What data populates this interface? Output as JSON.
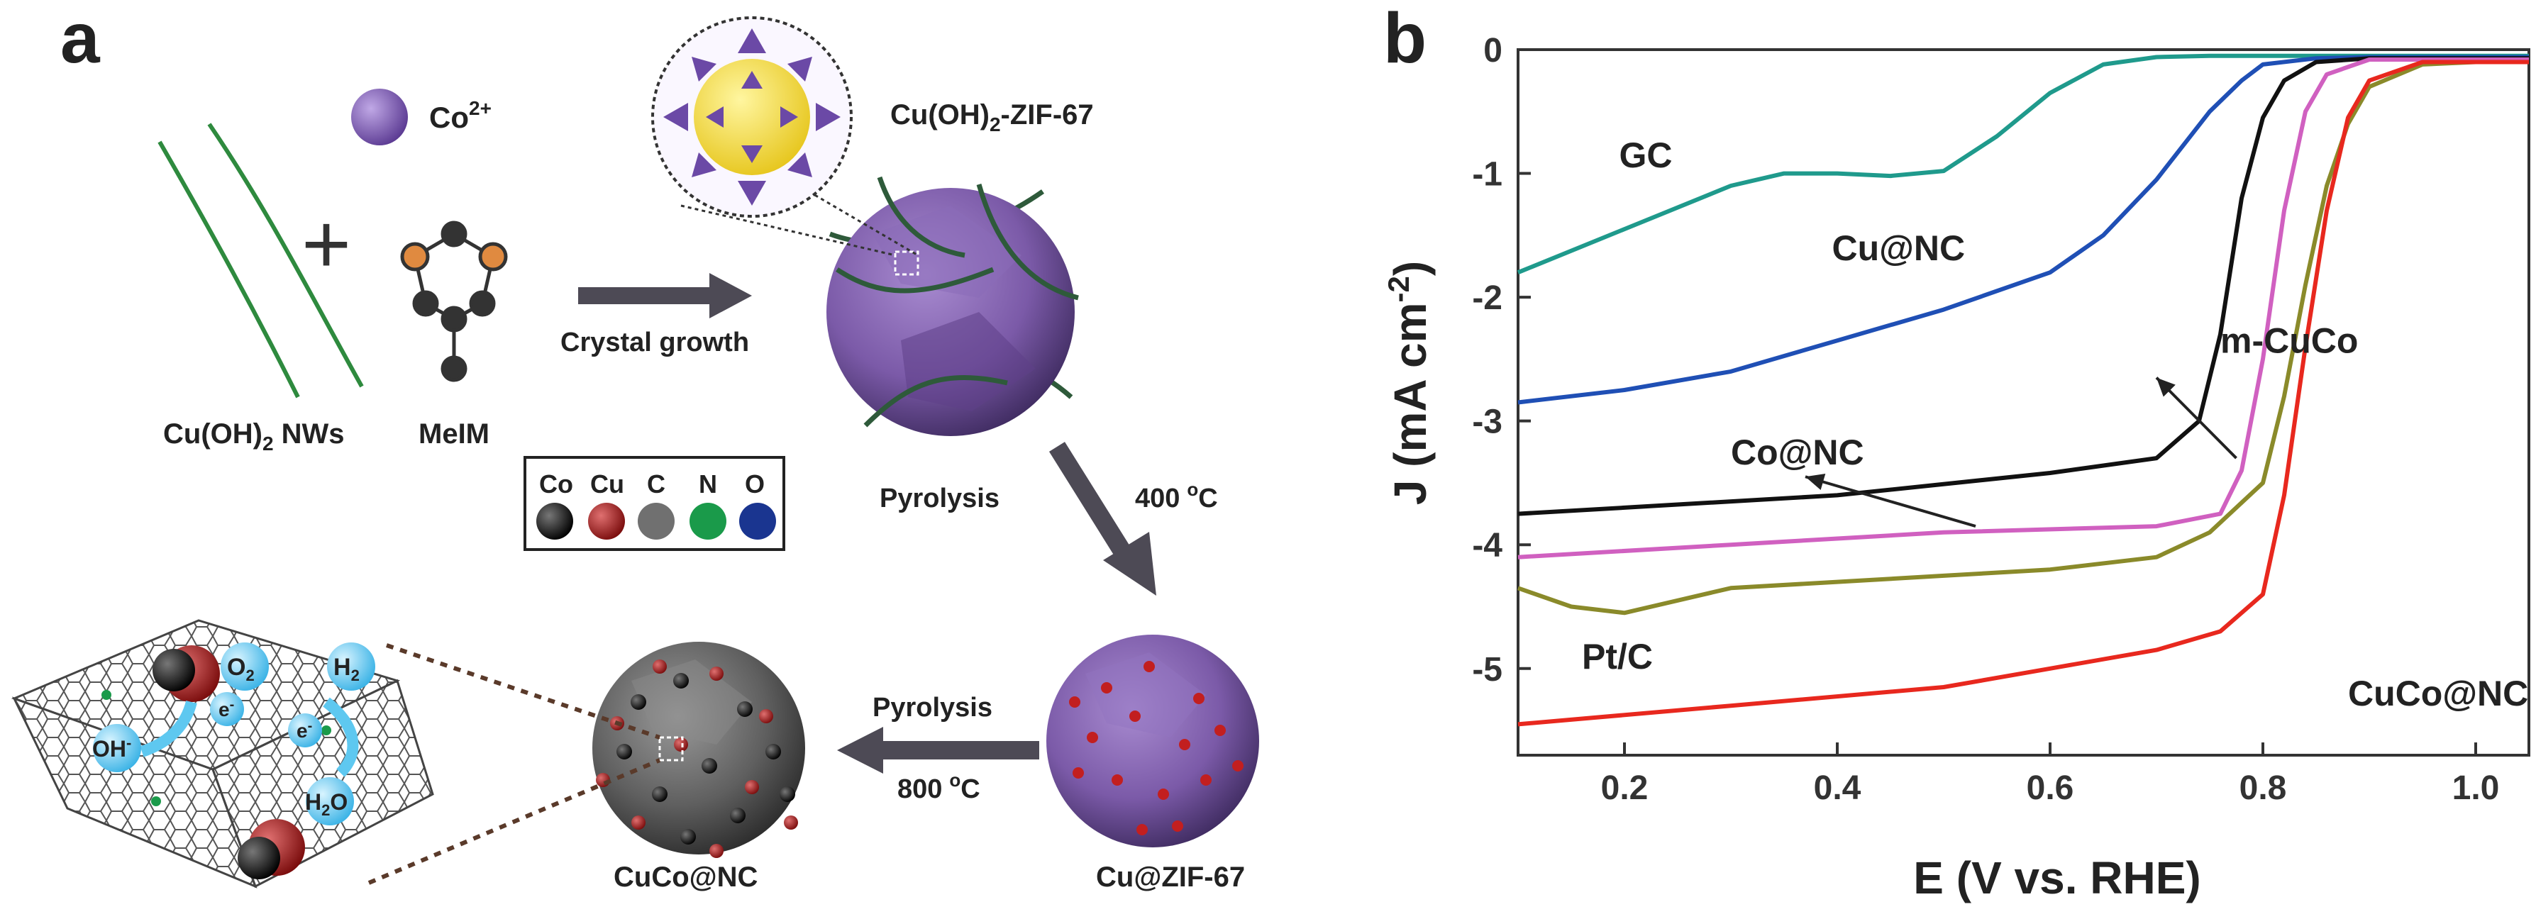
{
  "panel_a": {
    "letter": "a",
    "ion_label": "Co",
    "ion_charge": "2+",
    "plus_sign": "+",
    "wires_label_pre": "Cu(OH)",
    "wires_label_sub": "2",
    "wires_label_post": " NWs",
    "linker_label": "MeIM",
    "step1_label": "Crystal growth",
    "mof1_label_pre": "Cu(OH)",
    "mof1_label_sub": "2",
    "mof1_label_post": "-ZIF-67",
    "step2_label": "Pyrolysis",
    "step2_temp": "400",
    "step2_unit_sup": "o",
    "step2_unit": "C",
    "mof2_label": "Cu@ZIF-67",
    "step3_label": "Pyrolysis",
    "step3_temp": "800",
    "step3_unit_sup": "o",
    "step3_unit": "C",
    "product_label": "CuCo@NC",
    "legend": [
      {
        "label": "Co",
        "color": "#111111"
      },
      {
        "label": "Cu",
        "color": "#b01818"
      },
      {
        "label": "C",
        "color": "#707070"
      },
      {
        "label": "N",
        "color": "#1a9a4a"
      },
      {
        "label": "O",
        "color": "#1a3590"
      }
    ],
    "species": {
      "o2_pre": "O",
      "o2_sub": "2",
      "h2_pre": "H",
      "h2_sub": "2",
      "oh_pre": "OH",
      "oh_sup": "-",
      "h2o_pre": "H",
      "h2o_sub": "2",
      "h2o_post": "O",
      "e1_pre": "e",
      "e1_sup": "-",
      "e2_pre": "e",
      "e2_sup": "-"
    },
    "colors": {
      "zif": "#7b5aa8",
      "carbon": "#5f5f5f",
      "wire": "#2e8a3e",
      "arrow": "#4d4a55",
      "bubble": "#5ec8f0"
    }
  },
  "chart_data": {
    "type": "line",
    "panel_letter": "b",
    "xlabel": "E (V vs. RHE)",
    "ylabel_pre": "J (mA cm",
    "ylabel_sup": "-2",
    "ylabel_post": ")",
    "xlim": [
      0.1,
      1.05
    ],
    "ylim": [
      -5.7,
      0
    ],
    "xticks": [
      0.2,
      0.4,
      0.6,
      0.8,
      1.0
    ],
    "xtick_labels": [
      "0.2",
      "0.4",
      "0.6",
      "0.8",
      "1.0"
    ],
    "yticks": [
      0,
      -1,
      -2,
      -3,
      -4,
      -5
    ],
    "ytick_labels": [
      "0",
      "-1",
      "-2",
      "-3",
      "-4",
      "-5"
    ],
    "grid": false,
    "series": [
      {
        "name": "GC",
        "color": "#1f9a8c",
        "x": [
          0.1,
          0.2,
          0.3,
          0.35,
          0.4,
          0.45,
          0.5,
          0.55,
          0.6,
          0.65,
          0.7,
          0.75,
          0.8,
          0.9,
          1.0,
          1.05
        ],
        "y": [
          -1.8,
          -1.45,
          -1.1,
          -1.0,
          -1.0,
          -1.02,
          -0.98,
          -0.7,
          -0.35,
          -0.12,
          -0.06,
          -0.05,
          -0.05,
          -0.05,
          -0.05,
          -0.05
        ]
      },
      {
        "name": "Cu@NC",
        "color": "#1f4fb5",
        "x": [
          0.1,
          0.2,
          0.3,
          0.4,
          0.5,
          0.6,
          0.65,
          0.7,
          0.75,
          0.78,
          0.8,
          0.85,
          0.9,
          1.0,
          1.05
        ],
        "y": [
          -2.85,
          -2.75,
          -2.6,
          -2.35,
          -2.1,
          -1.8,
          -1.5,
          -1.05,
          -0.5,
          -0.25,
          -0.12,
          -0.07,
          -0.06,
          -0.06,
          -0.06
        ]
      },
      {
        "name": "m-CuCo",
        "color": "#111111",
        "x": [
          0.1,
          0.2,
          0.4,
          0.6,
          0.7,
          0.74,
          0.76,
          0.78,
          0.8,
          0.82,
          0.85,
          0.9,
          1.0,
          1.05
        ],
        "y": [
          -3.75,
          -3.7,
          -3.6,
          -3.42,
          -3.3,
          -3.0,
          -2.3,
          -1.2,
          -0.55,
          -0.25,
          -0.1,
          -0.07,
          -0.07,
          -0.07
        ]
      },
      {
        "name": "Co@NC",
        "color": "#d060c0",
        "x": [
          0.1,
          0.3,
          0.5,
          0.7,
          0.76,
          0.78,
          0.8,
          0.82,
          0.84,
          0.86,
          0.9,
          1.0,
          1.05
        ],
        "y": [
          -4.1,
          -4.0,
          -3.9,
          -3.85,
          -3.75,
          -3.4,
          -2.5,
          -1.3,
          -0.5,
          -0.2,
          -0.08,
          -0.08,
          -0.08
        ]
      },
      {
        "name": "Pt/C",
        "color": "#8a8a2a",
        "x": [
          0.1,
          0.15,
          0.2,
          0.25,
          0.3,
          0.4,
          0.5,
          0.6,
          0.7,
          0.75,
          0.8,
          0.82,
          0.84,
          0.86,
          0.88,
          0.9,
          0.95,
          1.0,
          1.05
        ],
        "y": [
          -4.35,
          -4.5,
          -4.55,
          -4.45,
          -4.35,
          -4.3,
          -4.25,
          -4.2,
          -4.1,
          -3.9,
          -3.5,
          -2.8,
          -1.9,
          -1.1,
          -0.6,
          -0.3,
          -0.12,
          -0.1,
          -0.1
        ]
      },
      {
        "name": "CuCo@NC",
        "color": "#e8281e",
        "x": [
          0.1,
          0.3,
          0.5,
          0.6,
          0.7,
          0.76,
          0.8,
          0.82,
          0.84,
          0.86,
          0.88,
          0.9,
          0.95,
          1.0,
          1.05
        ],
        "y": [
          -5.45,
          -5.3,
          -5.15,
          -5.0,
          -4.85,
          -4.7,
          -4.4,
          -3.6,
          -2.4,
          -1.3,
          -0.55,
          -0.25,
          -0.1,
          -0.1,
          -0.1
        ]
      }
    ],
    "annotations": [
      {
        "text": "GC"
      },
      {
        "text": "Cu@NC"
      },
      {
        "text": "m-CuCo"
      },
      {
        "text": "Co@NC"
      },
      {
        "text": "Pt/C"
      },
      {
        "text": "CuCo@NC"
      }
    ]
  }
}
